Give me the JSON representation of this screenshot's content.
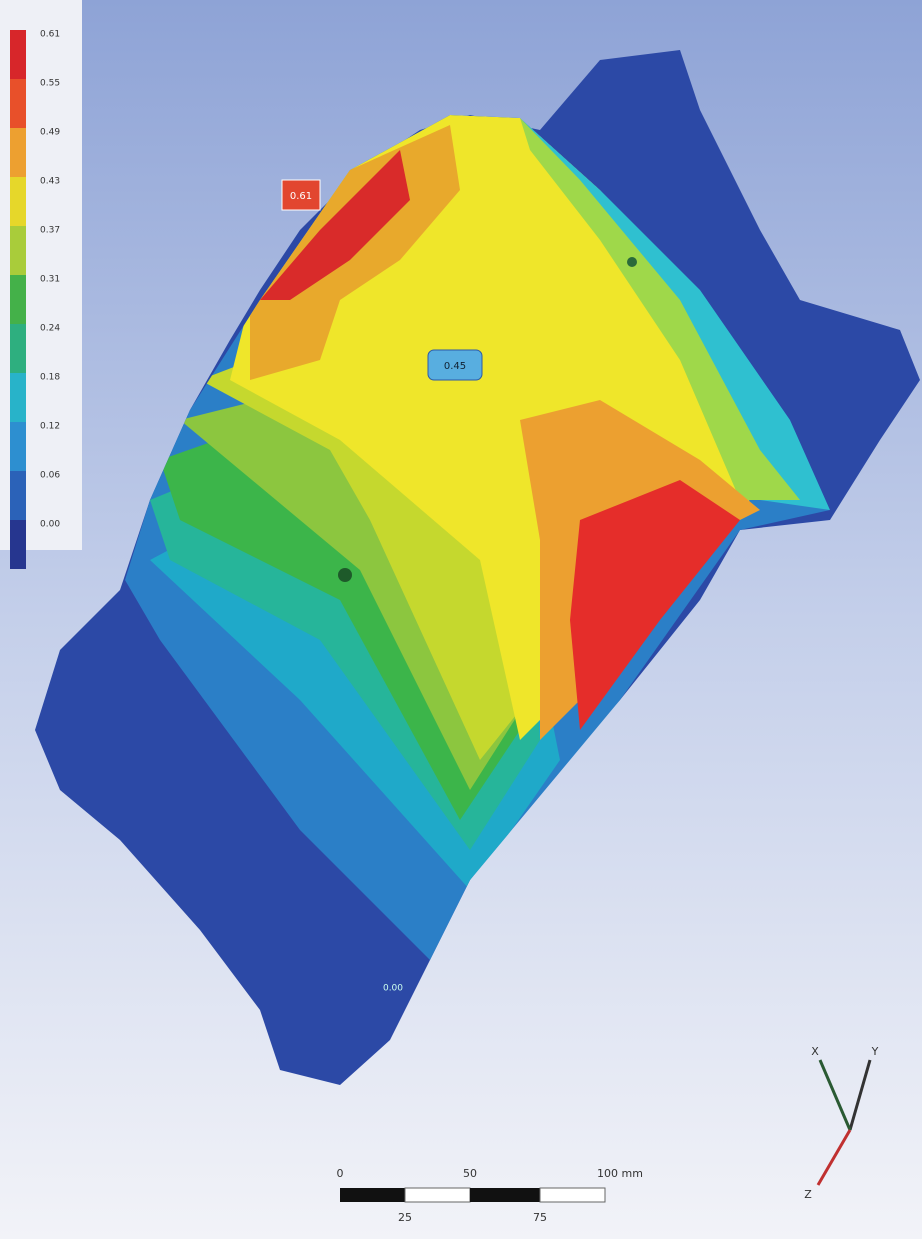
{
  "legend": {
    "labels": [
      "0.61",
      "0.55",
      "0.49",
      "0.43",
      "0.37",
      "0.31",
      "0.24",
      "0.18",
      "0.12",
      "0.06",
      "0.00"
    ]
  },
  "annotations": {
    "max_tag": "0.61",
    "probe_tag": "0.45",
    "min_tag": "0.00"
  },
  "scale_bar": {
    "top": [
      "0",
      "50",
      "100 mm"
    ],
    "bottom": [
      "25",
      "75"
    ]
  },
  "triad": [
    "Y",
    "X",
    "Z"
  ]
}
